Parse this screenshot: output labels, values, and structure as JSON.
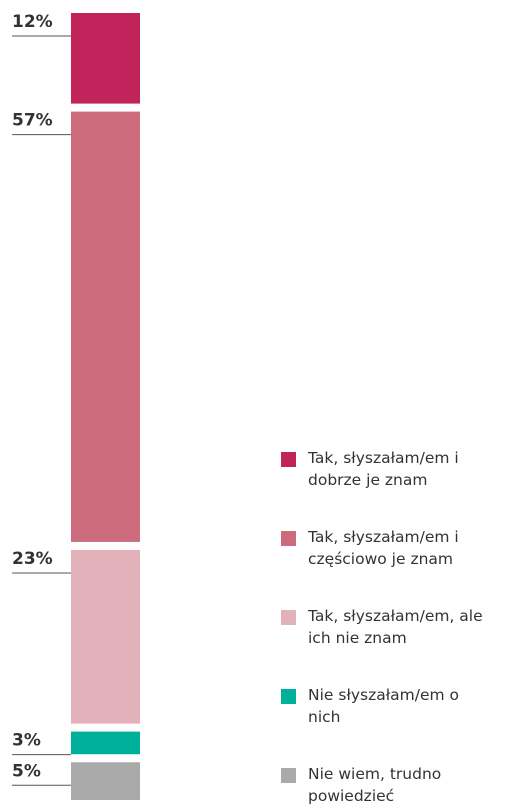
{
  "chart_data": {
    "type": "bar",
    "stacked": true,
    "ylim": [
      0,
      100
    ],
    "series": [
      {
        "name": "Tak, słyszałam/em i dobrze je znam",
        "color": "#c0245a",
        "values": [
          12
        ],
        "value_labels": [
          "12%"
        ]
      },
      {
        "name": "Tak, słyszałam/em i częściowo je znam",
        "color": "#cc6b7c",
        "values": [
          57
        ],
        "value_labels": [
          "57%"
        ]
      },
      {
        "name": "Tak, słyszałam/em, ale ich nie znam",
        "color": "#e3b1b9",
        "values": [
          23
        ],
        "value_labels": [
          "23%"
        ]
      },
      {
        "name": "Nie słyszałam/em o nich",
        "color": "#00b09b",
        "values": [
          3
        ],
        "value_labels": [
          "3%"
        ]
      },
      {
        "name": "Nie wiem, trudno powiedzieć",
        "color": "#aaaaaa",
        "values": [
          5
        ],
        "value_labels": [
          "5%"
        ]
      }
    ]
  }
}
